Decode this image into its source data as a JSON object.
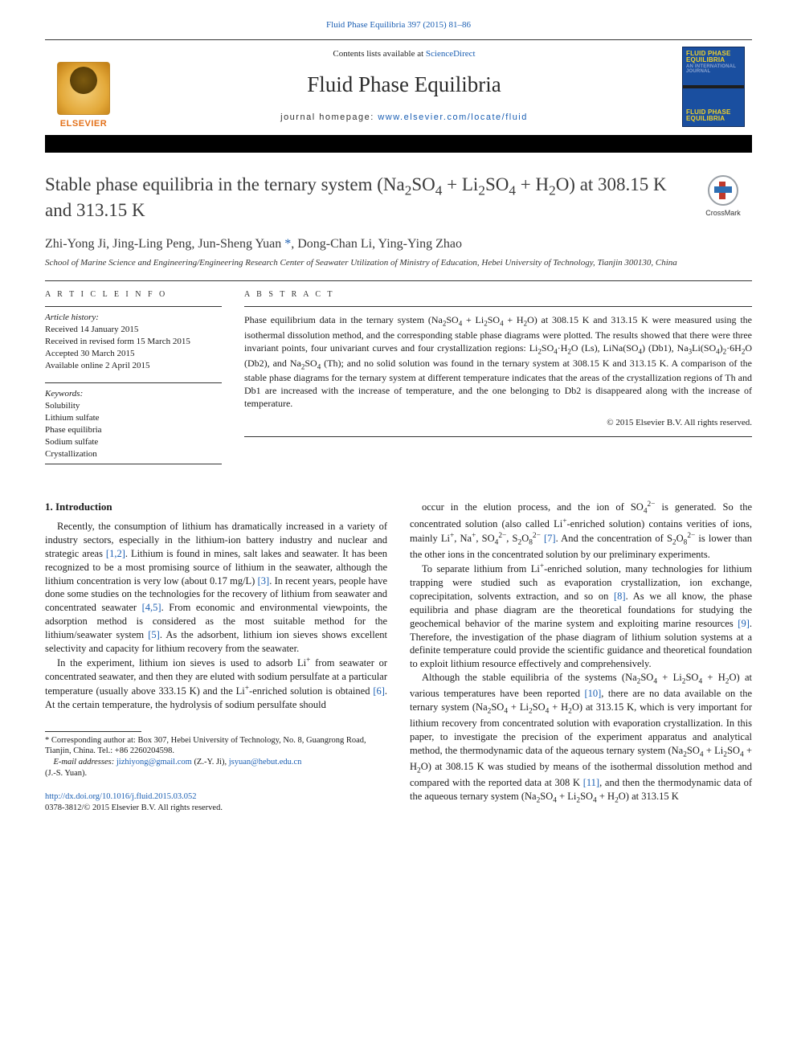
{
  "colors": {
    "link": "#1b5fb3",
    "text": "#1a1a1a",
    "heading": "#3a3a3a",
    "elsevier_orange": "#e3711a",
    "cover_blue": "#1a4fa0",
    "cover_yellow": "#f0d12a"
  },
  "top_citation": {
    "journal_link_text": "Fluid Phase Equilibria 397 (2015) 81–86"
  },
  "masthead": {
    "availability_prefix": "Contents lists available at ",
    "availability_link": "ScienceDirect",
    "journal_name": "Fluid Phase Equilibria",
    "homepage_prefix": "journal homepage: ",
    "homepage_link": "www.elsevier.com/locate/fluid",
    "publisher_word": "ELSEVIER",
    "cover_lines": {
      "l1": "FLUID PHASE",
      "l2": "EQUILIBRIA",
      "l3": "AN INTERNATIONAL JOURNAL",
      "l4": "FLUID PHASE",
      "l5": "EQUILIBRIA"
    }
  },
  "crossmark_label": "CrossMark",
  "title_html": "Stable phase equilibria in the ternary system (Na<sub>2</sub>SO<sub>4</sub> + Li<sub>2</sub>SO<sub>4</sub> + H<sub>2</sub>O) at 308.15 K and 313.15 K",
  "authors_html": "Zhi-Yong Ji, Jing-Ling Peng, Jun-Sheng Yuan <span class=\"corr-star\">*</span>, Dong-Chan Li, Ying-Ying Zhao",
  "affiliation": "School of Marine Science and Engineering/Engineering Research Center of Seawater Utilization of Ministry of Education, Hebei University of Technology, Tianjin 300130, China",
  "article_info": {
    "label": "A R T I C L E  I N F O",
    "history_title": "Article history:",
    "received": "Received 14 January 2015",
    "revised": "Received in revised form 15 March 2015",
    "accepted": "Accepted 30 March 2015",
    "online": "Available online 2 April 2015",
    "keywords_title": "Keywords:",
    "keywords": [
      "Solubility",
      "Lithium sulfate",
      "Phase equilibria",
      "Sodium sulfate",
      "Crystallization"
    ]
  },
  "abstract": {
    "label": "A B S T R A C T",
    "text_html": "Phase equilibrium data in the ternary system (Na<sub>2</sub>SO<sub>4</sub> + Li<sub>2</sub>SO<sub>4</sub> + H<sub>2</sub>O) at 308.15 K and 313.15 K were measured using the isothermal dissolution method, and the corresponding stable phase diagrams were plotted. The results showed that there were three invariant points, four univariant curves and four crystallization regions: Li<sub>2</sub>SO<sub>4</sub>·H<sub>2</sub>O (Ls), LiNa(SO<sub>4</sub>) (Db1), Na<sub>3</sub>Li(SO<sub>4</sub>)<sub>2</sub>·6H<sub>2</sub>O (Db2), and Na<sub>2</sub>SO<sub>4</sub> (Th); and no solid solution was found in the ternary system at 308.15 K and 313.15 K. A comparison of the stable phase diagrams for the ternary system at different temperature indicates that the areas of the crystallization regions of Th and Db1 are increased with the increase of temperature, and the one belonging to Db2 is disappeared along with the increase of temperature.",
    "copyright": "© 2015 Elsevier B.V. All rights reserved."
  },
  "body": {
    "section1_title": "1. Introduction",
    "p1_html": "Recently, the consumption of lithium has dramatically increased in a variety of industry sectors, especially in the lithium-ion battery industry and nuclear and strategic areas <a href=\"#\" data-name=\"ref-link\" data-interactable=\"true\">[1,2]</a>. Lithium is found in mines, salt lakes and seawater. It has been recognized to be a most promising source of lithium in the seawater, although the lithium concentration is very low (about 0.17 mg/L) <a href=\"#\" data-name=\"ref-link\" data-interactable=\"true\">[3]</a>. In recent years, people have done some studies on the technologies for the recovery of lithium from seawater and concentrated seawater <a href=\"#\" data-name=\"ref-link\" data-interactable=\"true\">[4,5]</a>. From economic and environmental viewpoints, the adsorption method is considered as the most suitable method for the lithium/seawater system <a href=\"#\" data-name=\"ref-link\" data-interactable=\"true\">[5]</a>. As the adsorbent, lithium ion sieves shows excellent selectivity and capacity for lithium recovery from the seawater.",
    "p2_html": "In the experiment, lithium ion sieves is used to adsorb Li<sup>+</sup> from seawater or concentrated seawater, and then they are eluted with sodium persulfate at a particular temperature (usually above 333.15 K) and the Li<sup>+</sup>-enriched solution is obtained <a href=\"#\" data-name=\"ref-link\" data-interactable=\"true\">[6]</a>. At the certain temperature, the hydrolysis of sodium persulfate should",
    "p3_html": "occur in the elution process, and the ion of SO<sub>4</sub><sup>2−</sup> is generated. So the concentrated solution (also called Li<sup>+</sup>-enriched solution) contains verities of ions, mainly Li<sup>+</sup>, Na<sup>+</sup>, SO<sub>4</sub><sup>2−</sup>, S<sub>2</sub>O<sub>8</sub><sup>2−</sup> <a href=\"#\" data-name=\"ref-link\" data-interactable=\"true\">[7]</a>. And the concentration of S<sub>2</sub>O<sub>8</sub><sup>2−</sup> is lower than the other ions in the concentrated solution by our preliminary experiments.",
    "p4_html": "To separate lithium from Li<sup>+</sup>-enriched solution, many technologies for lithium trapping were studied such as evaporation crystallization, ion exchange, coprecipitation, solvents extraction, and so on <a href=\"#\" data-name=\"ref-link\" data-interactable=\"true\">[8]</a>. As we all know, the phase equilibria and phase diagram are the theoretical foundations for studying the geochemical behavior of the marine system and exploiting marine resources <a href=\"#\" data-name=\"ref-link\" data-interactable=\"true\">[9]</a>. Therefore, the investigation of the phase diagram of lithium solution systems at a definite temperature could provide the scientific guidance and theoretical foundation to exploit lithium resource effectively and comprehensively.",
    "p5_html": "Although the stable equilibria of the systems (Na<sub>2</sub>SO<sub>4</sub> + Li<sub>2</sub>SO<sub>4</sub> + H<sub>2</sub>O) at various temperatures have been reported <a href=\"#\" data-name=\"ref-link\" data-interactable=\"true\">[10]</a>, there are no data available on the ternary system (Na<sub>2</sub>SO<sub>4</sub> + Li<sub>2</sub>SO<sub>4</sub> + H<sub>2</sub>O) at 313.15 K, which is very important for lithium recovery from concentrated solution with evaporation crystallization. In this paper, to investigate the precision of the experiment apparatus and analytical method, the thermodynamic data of the aqueous ternary system (Na<sub>2</sub>SO<sub>4</sub> + Li<sub>2</sub>SO<sub>4</sub> + H<sub>2</sub>O) at 308.15 K was studied by means of the isothermal dissolution method and compared with the reported data at 308 K <a href=\"#\" data-name=\"ref-link\" data-interactable=\"true\">[11]</a>, and then the thermodynamic data of the aqueous ternary system (Na<sub>2</sub>SO<sub>4</sub> + Li<sub>2</sub>SO<sub>4</sub> + H<sub>2</sub>O) at 313.15 K"
  },
  "footnote": {
    "corr_html": "* Corresponding author at: Box 307, Hebei University of Technology, No. 8, Guangrong Road, Tianjin, China. Tel.: +86 2260204598.",
    "emails_label": "E-mail addresses: ",
    "email1": "jizhiyong@gmail.com",
    "email1_who": " (Z.-Y. Ji), ",
    "email2": "jsyuan@hebut.edu.cn",
    "email2_who": "(J.-S. Yuan)."
  },
  "doi": {
    "link": "http://dx.doi.org/10.1016/j.fluid.2015.03.052",
    "issn_line": "0378-3812/© 2015 Elsevier B.V. All rights reserved."
  }
}
